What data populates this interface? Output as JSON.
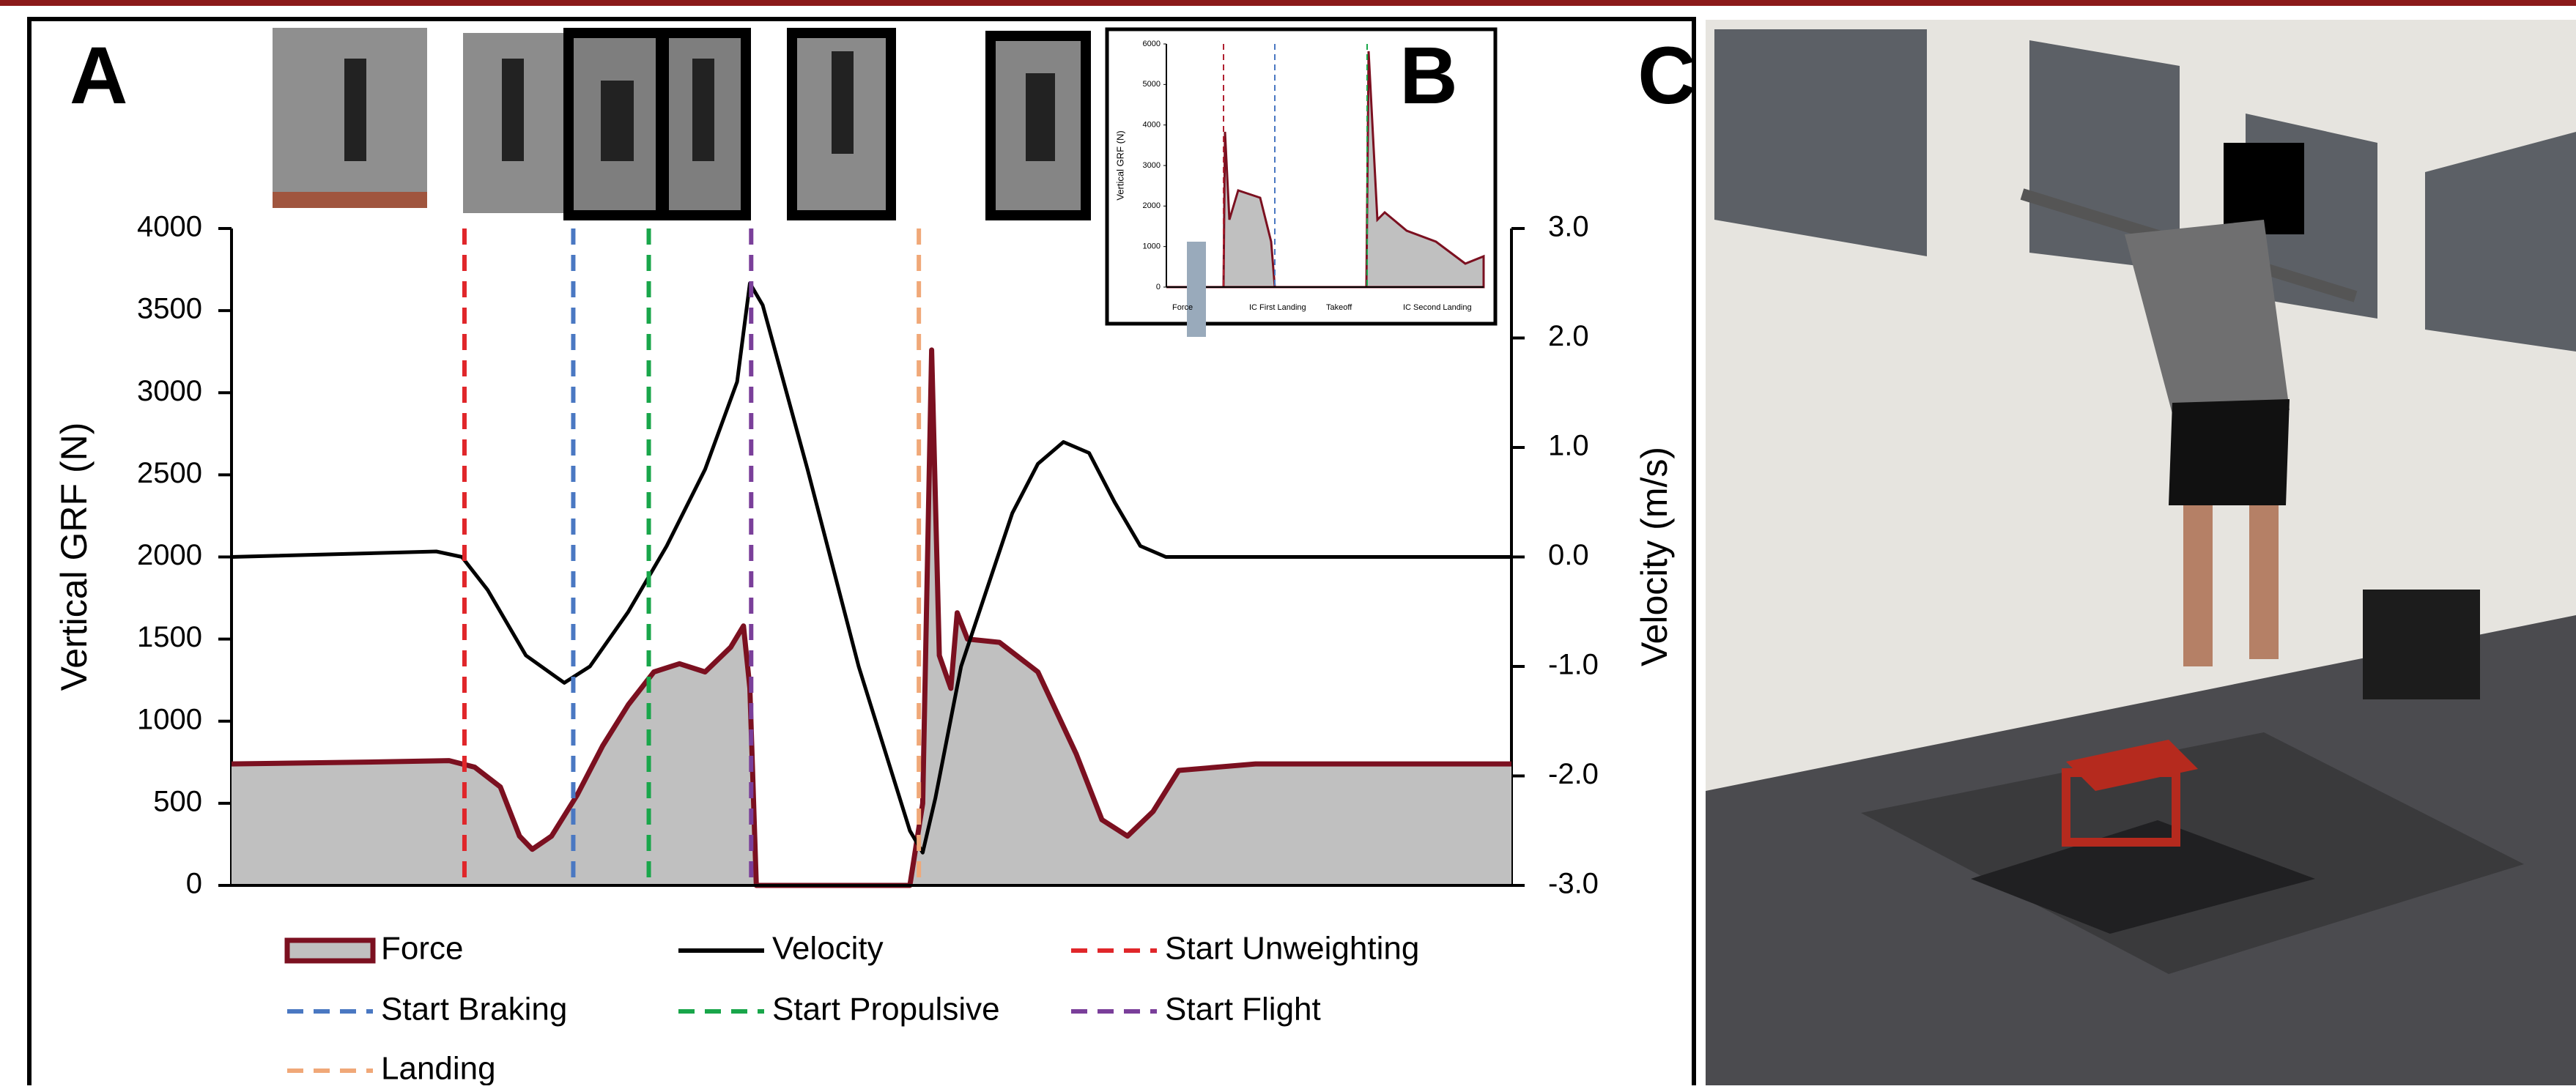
{
  "panels": {
    "a": "A",
    "b": "B",
    "c": "C"
  },
  "chart_data": {
    "type": "force-velocity",
    "ylabel": "Vertical GRF (N)",
    "y2label": "Velocity (m/s)",
    "xlim": [
      0,
      100
    ],
    "ylim": [
      0,
      4000
    ],
    "yticks": [
      0,
      500,
      1000,
      1500,
      2000,
      2500,
      3000,
      3500,
      4000
    ],
    "y2lim": [
      -3,
      3
    ],
    "y2ticks": [
      {
        "value": -3,
        "label": "-3.0"
      },
      {
        "value": -2,
        "label": "-2.0"
      },
      {
        "value": -1,
        "label": "-1.0"
      },
      {
        "value": 0,
        "label": "0.0"
      },
      {
        "value": 1,
        "label": "1.0"
      },
      {
        "value": 2,
        "label": "2.0"
      },
      {
        "value": 3,
        "label": "3.0"
      }
    ],
    "series": [
      {
        "name": "Force",
        "color": "#7b1020",
        "fill": "#c0c0c0",
        "x": [
          0,
          10,
          17,
          19,
          21,
          22.5,
          23.5,
          25,
          27,
          29,
          31,
          33,
          35,
          37,
          39,
          40,
          40.5,
          41,
          53,
          54,
          54.7,
          55.3,
          56.2,
          56.7,
          57.5,
          60,
          63,
          66,
          68,
          70,
          72,
          74,
          80,
          90,
          100
        ],
        "values": [
          740,
          750,
          760,
          720,
          600,
          300,
          220,
          300,
          550,
          850,
          1100,
          1300,
          1350,
          1300,
          1450,
          1580,
          1200,
          0,
          0,
          500,
          3260,
          1400,
          1200,
          1660,
          1500,
          1480,
          1300,
          800,
          400,
          300,
          450,
          700,
          740,
          740,
          740
        ]
      },
      {
        "name": "Velocity",
        "color": "#000000",
        "axis": "y2",
        "x": [
          0,
          16,
          18,
          20,
          23,
          26,
          28,
          31,
          34,
          37,
          39.5,
          40.5,
          41.5,
          45,
          49,
          53,
          54,
          55,
          57,
          59,
          61,
          63,
          65,
          67,
          69,
          71,
          73,
          100
        ],
        "values": [
          0,
          0.05,
          0,
          -0.3,
          -0.9,
          -1.15,
          -1.0,
          -0.5,
          0.1,
          0.8,
          1.6,
          2.5,
          2.3,
          0.8,
          -1.0,
          -2.5,
          -2.7,
          -2.2,
          -1.0,
          -0.3,
          0.4,
          0.85,
          1.05,
          0.95,
          0.5,
          0.1,
          0,
          0
        ]
      }
    ],
    "events": [
      {
        "name": "Start Unweighting",
        "color": "#e0262a",
        "x": 18.2
      },
      {
        "name": "Start Braking",
        "color": "#4a78c2",
        "x": 26.7
      },
      {
        "name": "Start Propulsive",
        "color": "#19a64a",
        "x": 32.6
      },
      {
        "name": "Start Flight",
        "color": "#7a3f9a",
        "x": 40.6
      },
      {
        "name": "Landing",
        "color": "#f0a878",
        "x": 53.7
      }
    ]
  },
  "inset": {
    "ylabel": "Vertical GRF (N)",
    "yticks": [
      0,
      1000,
      2000,
      3000,
      4000,
      5000,
      6000
    ],
    "legend": [
      "Force",
      "IC First Landing",
      "Takeoff",
      "IC Second Landing"
    ]
  }
}
